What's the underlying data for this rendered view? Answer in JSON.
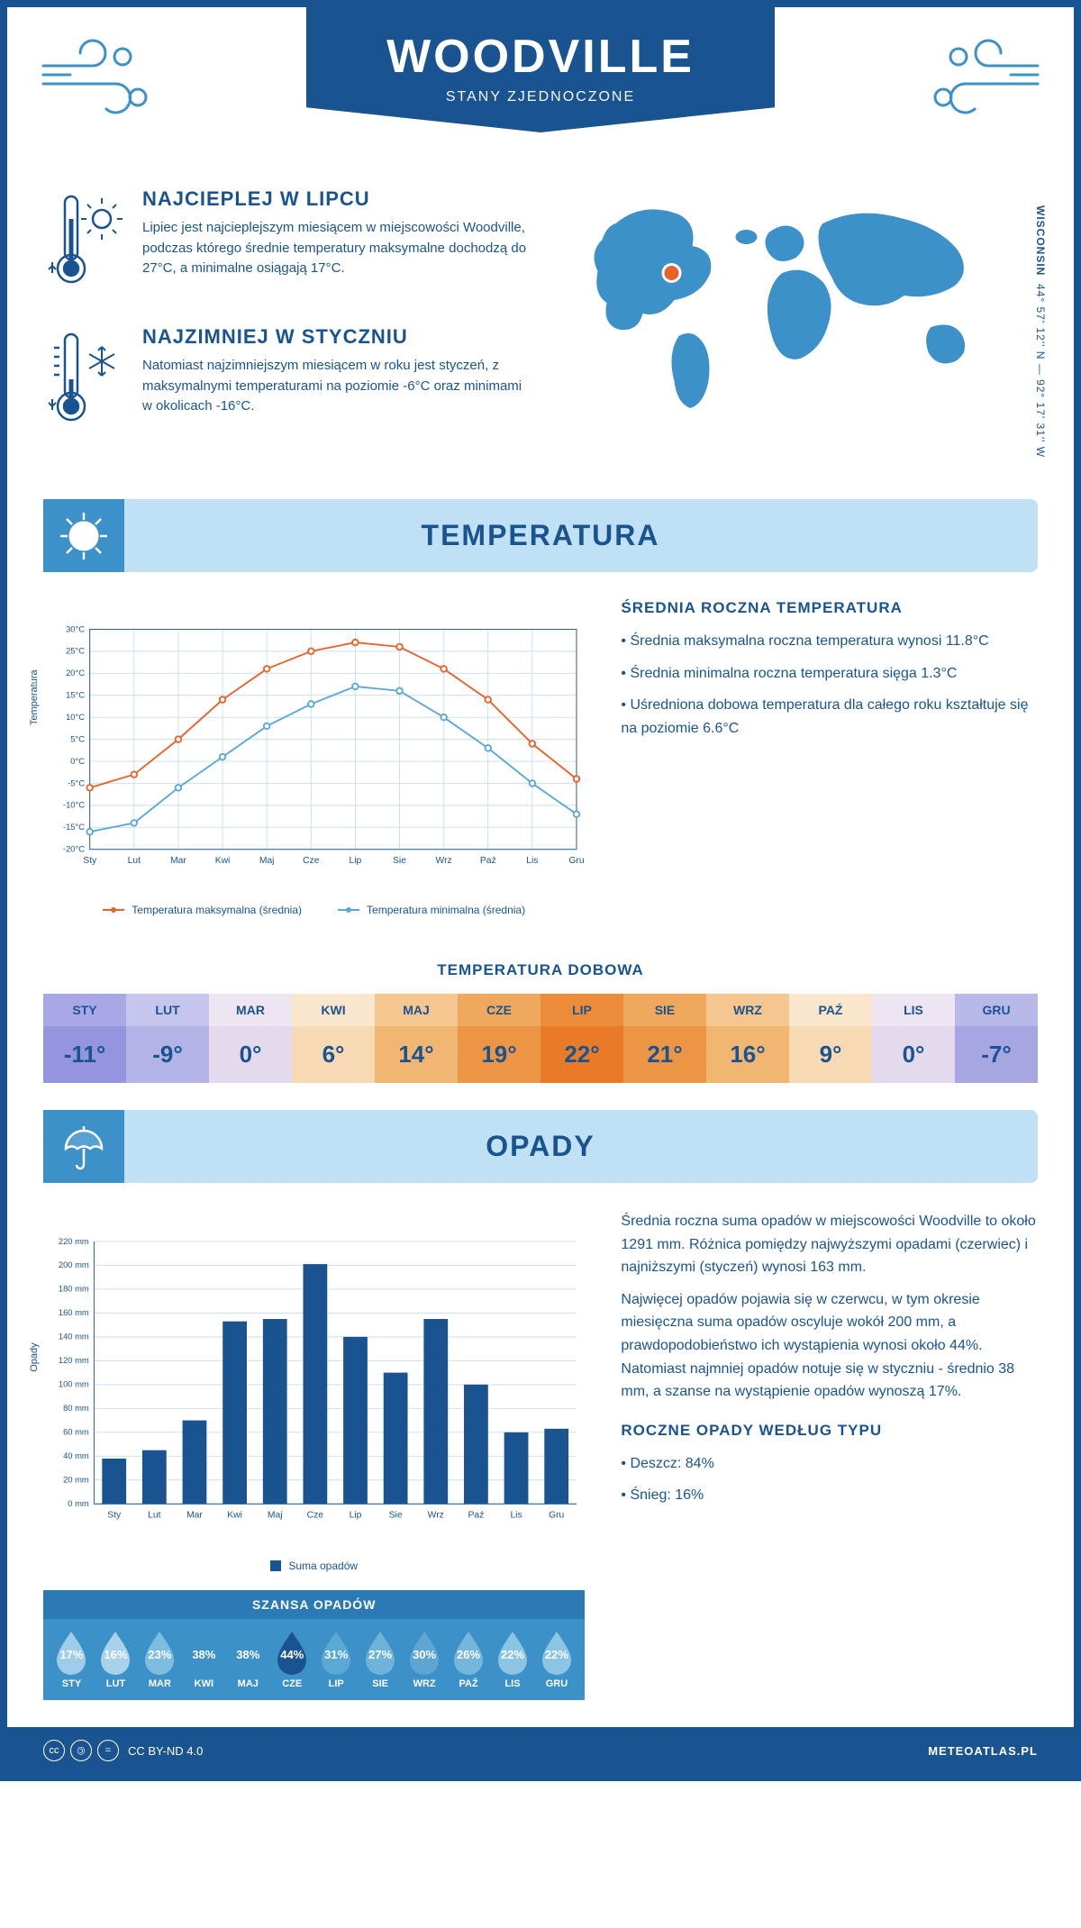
{
  "header": {
    "city": "WOODVILLE",
    "country": "STANY ZJEDNOCZONE",
    "region": "WISCONSIN",
    "coordinates": "44° 57' 12'' N — 92° 17' 31'' W"
  },
  "intro": {
    "hot": {
      "title": "NAJCIEPLEJ W LIPCU",
      "body": "Lipiec jest najcieplejszym miesiącem w miejscowości Woodville, podczas którego średnie temperatury maksymalne dochodzą do 27°C, a minimalne osiągają 17°C."
    },
    "cold": {
      "title": "NAJZIMNIEJ W STYCZNIU",
      "body": "Natomiast najzimniejszym miesiącem w roku jest styczeń, z maksymalnymi temperaturami na poziomie -6°C oraz minimami w okolicach -16°C."
    }
  },
  "temperature": {
    "section_title": "TEMPERATURA",
    "chart": {
      "type": "line",
      "xlabels": [
        "Sty",
        "Lut",
        "Mar",
        "Kwi",
        "Maj",
        "Cze",
        "Lip",
        "Sie",
        "Wrz",
        "Paź",
        "Lis",
        "Gru"
      ],
      "ymin": -20,
      "ymax": 30,
      "ystep": 5,
      "yunit": "°C",
      "series": [
        {
          "name": "Temperatura maksymalna (średnia)",
          "color": "#e8622c",
          "values": [
            -6,
            -3,
            5,
            14,
            21,
            25,
            27,
            26,
            21,
            14,
            4,
            -4
          ]
        },
        {
          "name": "Temperatura minimalna (średnia)",
          "color": "#5aa8d6",
          "values": [
            -16,
            -14,
            -6,
            1,
            8,
            13,
            17,
            16,
            10,
            3,
            -5,
            -12
          ]
        }
      ],
      "ylabel": "Temperatura",
      "grid_color": "#c9dff0",
      "axis_color": "#1a5490",
      "bg": "#ffffff"
    },
    "annual": {
      "title": "ŚREDNIA ROCZNA TEMPERATURA",
      "bullets": [
        "Średnia maksymalna roczna temperatura wynosi 11.8°C",
        "Średnia minimalna roczna temperatura sięga 1.3°C",
        "Uśredniona dobowa temperatura dla całego roku kształtuje się na poziomie 6.6°C"
      ]
    },
    "daily": {
      "title": "TEMPERATURA DOBOWA",
      "months": [
        "STY",
        "LUT",
        "MAR",
        "KWI",
        "MAJ",
        "CZE",
        "LIP",
        "SIE",
        "WRZ",
        "PAŹ",
        "LIS",
        "GRU"
      ],
      "values": [
        "-11°",
        "-9°",
        "0°",
        "6°",
        "14°",
        "19°",
        "22°",
        "21°",
        "16°",
        "9°",
        "0°",
        "-7°"
      ],
      "head_colors": [
        "#a8a8e6",
        "#c5c5ed",
        "#ede6f2",
        "#fae6cc",
        "#f5c68f",
        "#f0a85e",
        "#ec8c3a",
        "#f0a85e",
        "#f5c68f",
        "#fae6cc",
        "#ede6f2",
        "#b8b8e9"
      ],
      "val_colors": [
        "#9494df",
        "#b3b3e8",
        "#e4daee",
        "#f7d9b3",
        "#f2b673",
        "#ec9645",
        "#e87a28",
        "#ec9645",
        "#f2b673",
        "#f7d9b3",
        "#e4daee",
        "#a6a6e3"
      ],
      "text_color": "#1a5490"
    }
  },
  "precip": {
    "section_title": "OPADY",
    "chart": {
      "type": "bar",
      "xlabels": [
        "Sty",
        "Lut",
        "Mar",
        "Kwi",
        "Maj",
        "Cze",
        "Lip",
        "Sie",
        "Wrz",
        "Paź",
        "Lis",
        "Gru"
      ],
      "ymin": 0,
      "ymax": 220,
      "ystep": 20,
      "yunit": " mm",
      "values": [
        38,
        45,
        70,
        153,
        155,
        201,
        140,
        110,
        155,
        100,
        60,
        63
      ],
      "bar_color": "#1a5490",
      "legend_label": "Suma opadów",
      "ylabel": "Opady",
      "grid_color": "#c9dff0"
    },
    "paragraphs": [
      "Średnia roczna suma opadów w miejscowości Woodville to około 1291 mm. Różnica pomiędzy najwyższymi opadami (czerwiec) i najniższymi (styczeń) wynosi 163 mm.",
      "Najwięcej opadów pojawia się w czerwcu, w tym okresie miesięczna suma opadów oscyluje wokół 200 mm, a prawdopodobieństwo ich wystąpienia wynosi około 44%. Natomiast najmniej opadów notuje się w styczniu - średnio 38 mm, a szanse na wystąpienie opadów wynoszą 17%."
    ],
    "chance": {
      "title": "SZANSA OPADÓW",
      "months": [
        "STY",
        "LUT",
        "MAR",
        "KWI",
        "MAJ",
        "CZE",
        "LIP",
        "SIE",
        "WRZ",
        "PAŹ",
        "LIS",
        "GRU"
      ],
      "values": [
        "17%",
        "16%",
        "23%",
        "38%",
        "38%",
        "44%",
        "31%",
        "27%",
        "30%",
        "26%",
        "22%",
        "22%"
      ],
      "drop_colors": [
        "#9fcce8",
        "#a8d1ea",
        "#7fbde0",
        "#3d91c9",
        "#3d91c9",
        "#1a5490",
        "#5aa8d6",
        "#6fb3da",
        "#5fa5d3",
        "#74b6dc",
        "#8cc4e3",
        "#8cc4e3"
      ]
    },
    "by_type": {
      "title": "ROCZNE OPADY WEDŁUG TYPU",
      "bullets": [
        "Deszcz: 84%",
        "Śnieg: 16%"
      ]
    }
  },
  "footer": {
    "license": "CC BY-ND 4.0",
    "site": "METEOATLAS.PL"
  }
}
